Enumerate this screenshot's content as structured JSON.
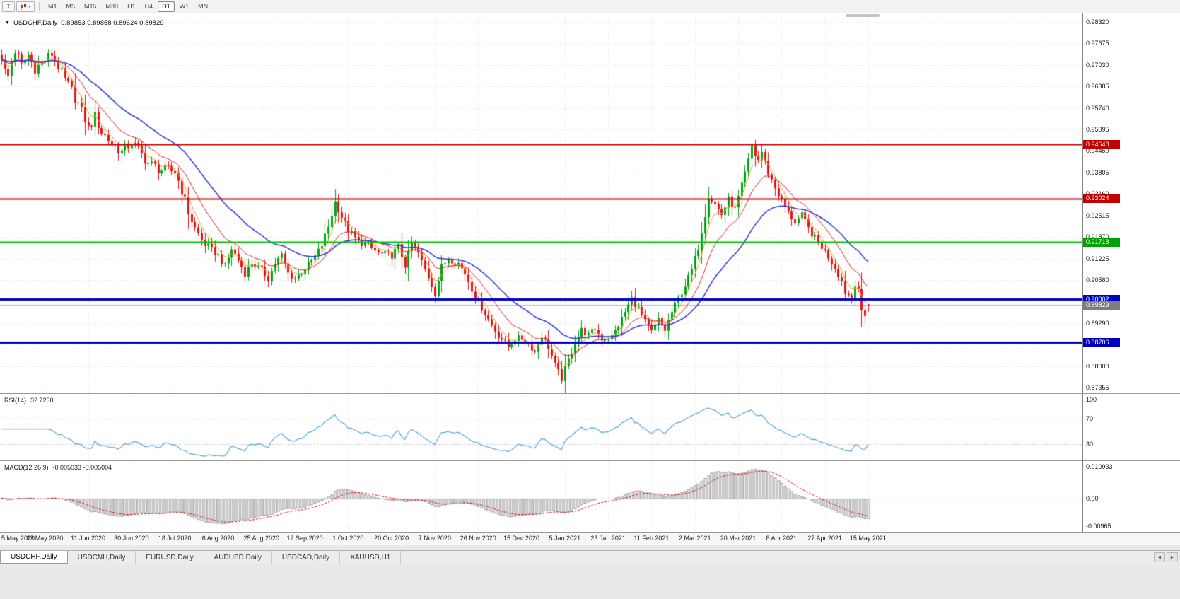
{
  "toolbar": {
    "tick_button": "T",
    "chart_type_caret": "▾",
    "timeframes": [
      "M1",
      "M5",
      "M15",
      "M30",
      "H1",
      "H4",
      "D1",
      "W1",
      "MN"
    ],
    "active_timeframe": "D1"
  },
  "chart": {
    "marker": "▼",
    "symbol_period": "USDCHF,Daily",
    "ohlc": "0.89853 0.89858 0.89624 0.89829"
  },
  "price_axis": {
    "labels": [
      "0.98320",
      "0.97675",
      "0.97030",
      "0.96385",
      "0.95740",
      "0.95095",
      "0.94450",
      "0.93805",
      "0.93160",
      "0.92515",
      "0.91870",
      "0.91225",
      "0.90580",
      "0.89935",
      "0.89290",
      "0.88645",
      "0.88000",
      "0.87355"
    ],
    "top_value": 0.9832,
    "step": 0.00645
  },
  "hlines": [
    {
      "value": 0.94648,
      "label": "0.94648",
      "color": "#cc0000",
      "badge_color": "#c40000",
      "line_width": 2
    },
    {
      "value": 0.93024,
      "label": "0.93024",
      "color": "#cc0000",
      "badge_color": "#c40000",
      "line_width": 2
    },
    {
      "value": 0.91718,
      "label": "0.91718",
      "color": "#00c400",
      "badge_color": "#00a400",
      "line_width": 2
    },
    {
      "value": 0.90002,
      "label": "0.90002",
      "color": "#0000cc",
      "badge_color": "#0000c4",
      "line_width": 3
    },
    {
      "value": 0.88706,
      "label": "0.88706",
      "color": "#0000cc",
      "badge_color": "#0000c4",
      "line_width": 3
    }
  ],
  "current_price": {
    "value": 0.89829,
    "label": "0.89829",
    "badge_color": "#7d7d7d",
    "line_color": "#b8b8b8"
  },
  "date_axis": [
    "5 May 2020",
    "23 May 2020",
    "11 Jun 2020",
    "30 Jun 2020",
    "18 Jul 2020",
    "6 Aug 2020",
    "25 Aug 2020",
    "12 Sep 2020",
    "1 Oct 2020",
    "20 Oct 2020",
    "7 Nov 2020",
    "26 Nov 2020",
    "15 Dec 2020",
    "5 Jan 2021",
    "23 Jan 2021",
    "11 Feb 2021",
    "2 Mar 2021",
    "20 Mar 2021",
    "8 Apr 2021",
    "27 Apr 2021",
    "15 May 2021"
  ],
  "rsi": {
    "name": "RSI(14)",
    "value": "32.7230",
    "axis_labels": [
      "100",
      "70",
      "30"
    ],
    "axis_values": [
      100,
      70,
      30
    ],
    "levels": [
      70,
      30
    ],
    "line_color": "#58a6d8"
  },
  "macd": {
    "name": "MACD(12,26,9)",
    "values": "-0.005033 -0.005004",
    "axis_labels": [
      "0.010933",
      "0.00",
      "-0.00965"
    ],
    "axis_values": [
      0.010933,
      0.0,
      -0.00965
    ],
    "range": [
      -0.00965,
      0.010933
    ],
    "hist_fill": "#efefef",
    "hist_stroke": "#9a9a9a",
    "signal_color": "#dd0000"
  },
  "tabs": {
    "items": [
      "USDCHF,Daily",
      "USDCNH,Daily",
      "EURUSD,Daily",
      "AUDUSD,Daily",
      "USDCAD,Daily",
      "XAUUSD,H1"
    ],
    "active_index": 0,
    "scroll_left": "◄",
    "scroll_right": "►"
  },
  "chart_data": {
    "type": "candlestick",
    "symbol": "USDCHF",
    "period": "Daily",
    "visible_range": {
      "start": "5 May 2020",
      "end": "15 May 2021"
    },
    "y_range": [
      0.87355,
      0.9832
    ],
    "total_bars": 261,
    "last_bar": {
      "open": 0.89853,
      "high": 0.89858,
      "low": 0.89624,
      "close": 0.89829
    },
    "key_extremes": {
      "high": 0.9468,
      "high_bar": 225,
      "low": 0.8746,
      "low_bar": 168
    },
    "close_anchors": [
      [
        0,
        0.9718
      ],
      [
        1,
        0.9692
      ],
      [
        2,
        0.9668
      ],
      [
        3,
        0.9714
      ],
      [
        4,
        0.9746
      ],
      [
        5,
        0.9724
      ],
      [
        6,
        0.97
      ],
      [
        8,
        0.9732
      ],
      [
        10,
        0.9694
      ],
      [
        12,
        0.9706
      ],
      [
        13,
        0.9718
      ],
      [
        15,
        0.9736
      ],
      [
        17,
        0.9699
      ],
      [
        19,
        0.9656
      ],
      [
        21,
        0.9626
      ],
      [
        23,
        0.9586
      ],
      [
        25,
        0.954
      ],
      [
        26,
        0.9512
      ],
      [
        28,
        0.9548
      ],
      [
        30,
        0.9502
      ],
      [
        33,
        0.9468
      ],
      [
        36,
        0.9442
      ],
      [
        39,
        0.9472
      ],
      [
        41,
        0.9448
      ],
      [
        44,
        0.9408
      ],
      [
        48,
        0.9388
      ],
      [
        52,
        0.9384
      ],
      [
        54,
        0.9328
      ],
      [
        56,
        0.9262
      ],
      [
        58,
        0.9212
      ],
      [
        60,
        0.9178
      ],
      [
        63,
        0.9148
      ],
      [
        65,
        0.9132
      ],
      [
        67,
        0.9098
      ],
      [
        69,
        0.9152
      ],
      [
        71,
        0.9118
      ],
      [
        73,
        0.9078
      ],
      [
        75,
        0.9108
      ],
      [
        78,
        0.9088
      ],
      [
        80,
        0.9062
      ],
      [
        82,
        0.9108
      ],
      [
        84,
        0.9132
      ],
      [
        86,
        0.9078
      ],
      [
        88,
        0.9062
      ],
      [
        91,
        0.9092
      ],
      [
        94,
        0.9128
      ],
      [
        96,
        0.9162
      ],
      [
        98,
        0.9218
      ],
      [
        100,
        0.9292
      ],
      [
        102,
        0.9248
      ],
      [
        104,
        0.9208
      ],
      [
        107,
        0.9172
      ],
      [
        110,
        0.9162
      ],
      [
        113,
        0.9138
      ],
      [
        117,
        0.9132
      ],
      [
        119,
        0.9158
      ],
      [
        121,
        0.9102
      ],
      [
        123,
        0.9168
      ],
      [
        125,
        0.9138
      ],
      [
        127,
        0.9088
      ],
      [
        128,
        0.9068
      ],
      [
        130,
        0.9018
      ],
      [
        132,
        0.9098
      ],
      [
        134,
        0.9122
      ],
      [
        137,
        0.9108
      ],
      [
        139,
        0.9078
      ],
      [
        141,
        0.9032
      ],
      [
        143,
        0.8992
      ],
      [
        145,
        0.8958
      ],
      [
        147,
        0.8922
      ],
      [
        149,
        0.8892
      ],
      [
        152,
        0.8858
      ],
      [
        154,
        0.8882
      ],
      [
        156,
        0.8882
      ],
      [
        158,
        0.8868
      ],
      [
        160,
        0.8842
      ],
      [
        162,
        0.8892
      ],
      [
        164,
        0.8858
      ],
      [
        166,
        0.8802
      ],
      [
        168,
        0.8762
      ],
      [
        170,
        0.8818
      ],
      [
        172,
        0.8872
      ],
      [
        174,
        0.8908
      ],
      [
        176,
        0.8892
      ],
      [
        178,
        0.8912
      ],
      [
        180,
        0.8882
      ],
      [
        183,
        0.8888
      ],
      [
        185,
        0.8922
      ],
      [
        187,
        0.8962
      ],
      [
        189,
        0.9002
      ],
      [
        191,
        0.8972
      ],
      [
        193,
        0.8932
      ],
      [
        195,
        0.8902
      ],
      [
        197,
        0.8938
      ],
      [
        199,
        0.8908
      ],
      [
        201,
        0.8962
      ],
      [
        203,
        0.9002
      ],
      [
        205,
        0.9042
      ],
      [
        207,
        0.9088
      ],
      [
        209,
        0.9155
      ],
      [
        211,
        0.9255
      ],
      [
        212,
        0.931
      ],
      [
        214,
        0.9285
      ],
      [
        216,
        0.9255
      ],
      [
        218,
        0.93
      ],
      [
        220,
        0.927
      ],
      [
        222,
        0.934
      ],
      [
        224,
        0.9415
      ],
      [
        225,
        0.946
      ],
      [
        226,
        0.9432
      ],
      [
        227,
        0.9418
      ],
      [
        228,
        0.9442
      ],
      [
        230,
        0.938
      ],
      [
        232,
        0.9335
      ],
      [
        234,
        0.9295
      ],
      [
        236,
        0.9258
      ],
      [
        238,
        0.9232
      ],
      [
        240,
        0.9252
      ],
      [
        242,
        0.9212
      ],
      [
        244,
        0.9182
      ],
      [
        246,
        0.9158
      ],
      [
        248,
        0.9128
      ],
      [
        250,
        0.9095
      ],
      [
        252,
        0.9055
      ],
      [
        253,
        0.9022
      ],
      [
        255,
        0.9005
      ],
      [
        256,
        0.9048
      ],
      [
        257,
        0.9032
      ],
      [
        258,
        0.8968
      ],
      [
        259,
        0.895
      ],
      [
        260,
        0.89829
      ]
    ],
    "moving_averages": [
      {
        "estimated_period": 5,
        "color": "#eda127"
      },
      {
        "estimated_period": 13,
        "color": "#e02020"
      },
      {
        "estimated_period": 30,
        "color": "#2a35d8"
      }
    ],
    "bull_color": "#00a317",
    "bear_color": "#e81414",
    "grid_color": "#e4e4e4"
  }
}
